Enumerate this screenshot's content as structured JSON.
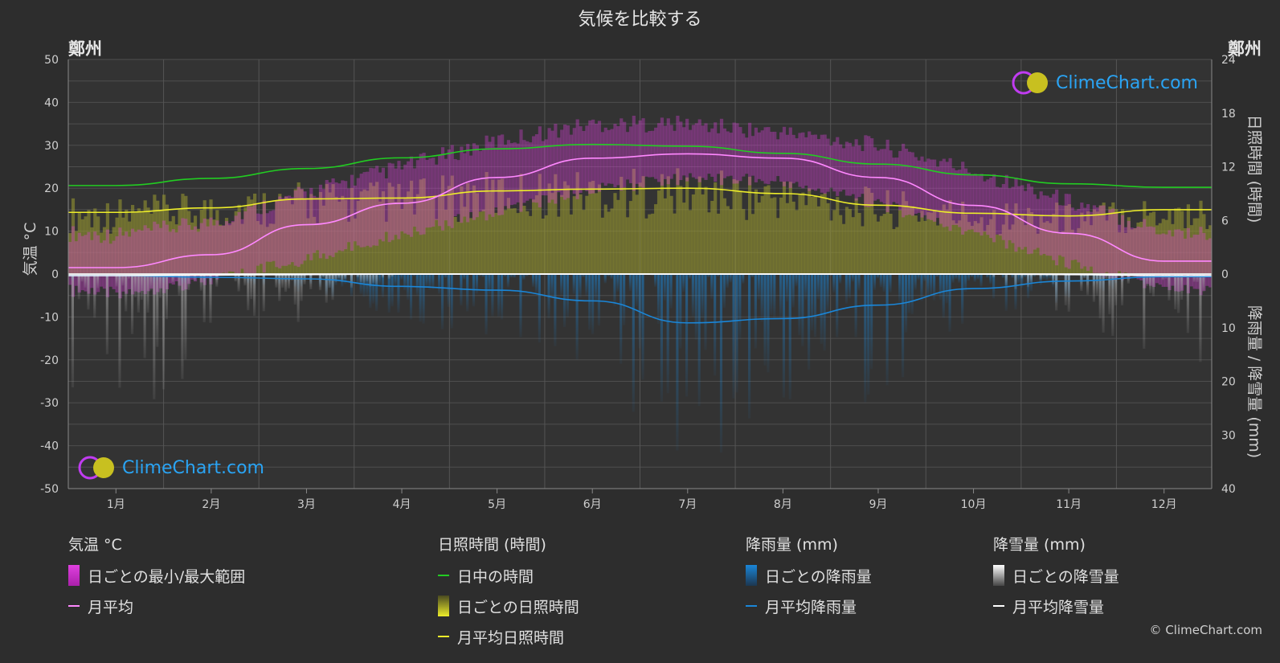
{
  "title": "気候を比較する",
  "city_left": "鄭州",
  "city_right": "鄭州",
  "logo_text": "ClimeChart.com",
  "copyright": "© ClimeChart.com",
  "colors": {
    "daylight": "#22cc22",
    "sunshine_avg": "#eded2a",
    "sunshine_bar": "#9c9c30",
    "temp_range": "#e040e0",
    "temp_avg": "#ff88ff",
    "rain": "#1a86d8",
    "snow": "#c8c8c8"
  },
  "legend": {
    "temp": {
      "head": "気温 °C",
      "range": "日ごとの最小/最大範囲",
      "avg": "月平均"
    },
    "sun": {
      "head": "日照時間 (時間)",
      "daylight": "日中の時間",
      "daily": "日ごとの日照時間",
      "avg": "月平均日照時間"
    },
    "rain": {
      "head": "降雨量 (mm)",
      "daily": "日ごとの降雨量",
      "avg": "月平均降雨量"
    },
    "snow": {
      "head": "降雪量 (mm)",
      "daily": "日ごとの降雪量",
      "avg": "月平均降雪量"
    }
  },
  "chart_data": {
    "type": "line",
    "categories": [
      "1月",
      "2月",
      "3月",
      "4月",
      "5月",
      "6月",
      "7月",
      "8月",
      "9月",
      "10月",
      "11月",
      "12月"
    ],
    "y_left": {
      "label": "気温 °C",
      "ticks": [
        50,
        40,
        30,
        20,
        10,
        0,
        -10,
        -20,
        -30,
        -40,
        -50
      ],
      "range": [
        -50,
        50
      ]
    },
    "y_right_top": {
      "label": "日照時間 (時間)",
      "ticks": [
        24,
        18,
        12,
        6,
        0
      ],
      "range": [
        0,
        24
      ]
    },
    "y_right_bottom": {
      "label": "降雨量 / 降雪量 (mm)",
      "ticks": [
        0,
        10,
        20,
        30,
        40
      ],
      "range": [
        0,
        40
      ]
    },
    "series": [
      {
        "name": "日中の時間",
        "axis": "sunshine_hours",
        "values": [
          9.9,
          10.7,
          11.8,
          13.0,
          14.0,
          14.5,
          14.3,
          13.5,
          12.3,
          11.1,
          10.1,
          9.7
        ]
      },
      {
        "name": "月平均日照時間",
        "axis": "sunshine_hours",
        "values": [
          6.9,
          7.4,
          8.4,
          8.5,
          9.3,
          9.5,
          9.6,
          9.0,
          7.7,
          6.8,
          6.5,
          7.2
        ]
      },
      {
        "name": "月平均",
        "axis": "temperature_c",
        "values": [
          1.5,
          4.5,
          11.5,
          16.5,
          22.5,
          27.0,
          28.0,
          27.0,
          22.5,
          16.0,
          9.5,
          3.0
        ]
      },
      {
        "name": "日ごとの最小/最大範囲 (最小)",
        "axis": "temperature_c",
        "values": [
          -3,
          0,
          5,
          11,
          16,
          21,
          24,
          23,
          18,
          11,
          4,
          -2
        ]
      },
      {
        "name": "日ごとの最小/最大範囲 (最大)",
        "axis": "temperature_c",
        "values": [
          7,
          10,
          17,
          23,
          29,
          33,
          33,
          31,
          28,
          22,
          15,
          8
        ]
      },
      {
        "name": "月平均降雨量",
        "axis": "precip_mm",
        "values": [
          0.3,
          0.6,
          0.9,
          2.3,
          3.0,
          5.0,
          9.1,
          8.3,
          5.8,
          2.7,
          1.3,
          0.5
        ]
      },
      {
        "name": "月平均降雪量",
        "axis": "precip_mm",
        "values": [
          0.3,
          0.2,
          0.1,
          0,
          0,
          0,
          0,
          0,
          0,
          0,
          0.1,
          0.3
        ]
      }
    ]
  }
}
